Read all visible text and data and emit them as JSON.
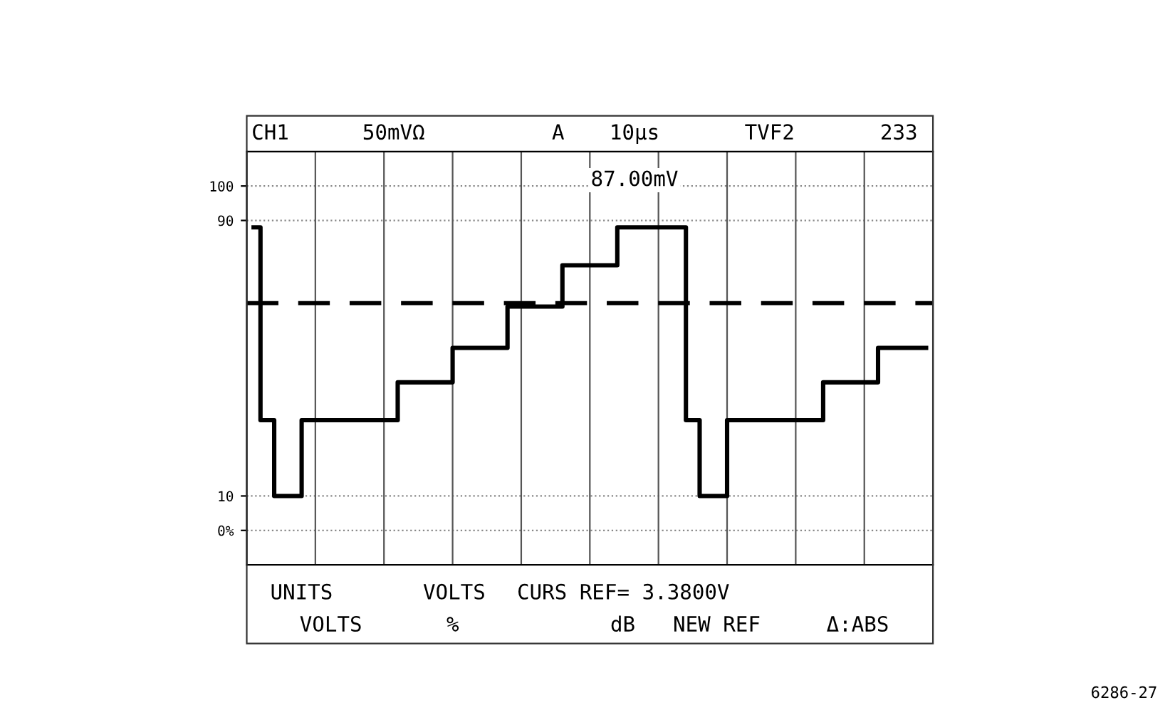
{
  "chart_data": {
    "type": "step",
    "categories": [
      null,
      null,
      null,
      null,
      null,
      null,
      null,
      null,
      null,
      null,
      null,
      null,
      null,
      null,
      null,
      null,
      null,
      null,
      null,
      null,
      null,
      null,
      null,
      null,
      null,
      null,
      null,
      null,
      null,
      null,
      null,
      null,
      null,
      null,
      null,
      null,
      null,
      null,
      null,
      null,
      null,
      null,
      null,
      null,
      null,
      null,
      null,
      null,
      null,
      null
    ],
    "series": [
      {
        "color": "#000000",
        "values": [
          88,
          32,
          10,
          10,
          32,
          32,
          32,
          32,
          32,
          32,
          32,
          43,
          43,
          43,
          43,
          53,
          53,
          53,
          53,
          65,
          65,
          65,
          65,
          77,
          77,
          77,
          77,
          88,
          88,
          88,
          88,
          88,
          32,
          10,
          10,
          32,
          32,
          32,
          32,
          32,
          32,
          32,
          43,
          43,
          43,
          43,
          53,
          53,
          53,
          53
        ]
      }
    ],
    "ylim": [
      -10,
      110
    ],
    "yticks": [
      {
        "value": 0,
        "label": "0%"
      },
      10,
      90,
      100
    ],
    "ref_lines": [
      {
        "axis": "y",
        "value": 66,
        "color": "#000000",
        "line_style": "dashed"
      }
    ],
    "grid": true,
    "line_style": "solid",
    "marker": "none",
    "annotations": [
      "CH1",
      "50mVΩ",
      "A",
      "10µs",
      "TVF2",
      "233",
      "87.00mV",
      "UNITS",
      "VOLTS",
      "VOLTS",
      "%",
      "CURS REF= 3.3800V",
      "dB",
      "NEW REF",
      "Δ:ABS",
      "6286-27"
    ]
  }
}
